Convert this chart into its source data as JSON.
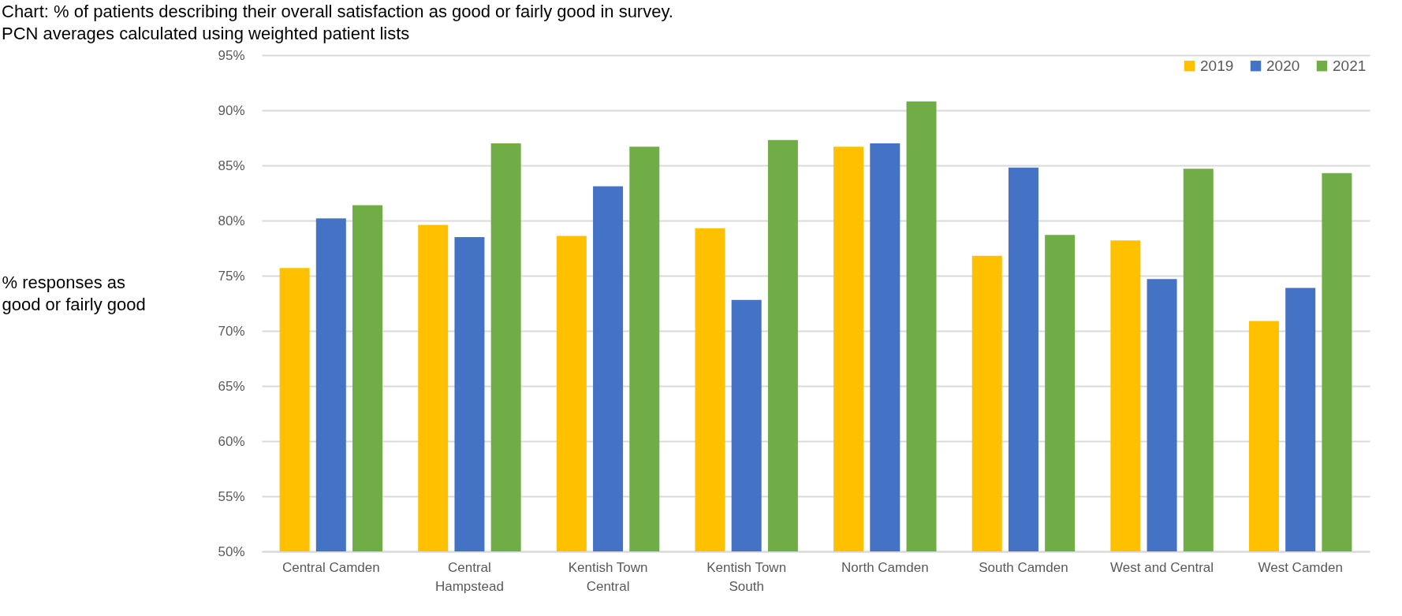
{
  "chart_data": {
    "type": "bar",
    "title": "Chart: % of patients describing their overall satisfaction as good or fairly good in survey. PCN averages calculated using weighted patient lists",
    "ylabel": "%  responses as\ngood or fairly good",
    "categories": [
      "Central Camden",
      "Central\nHampstead",
      "Kentish Town\nCentral",
      "Kentish Town\nSouth",
      "North Camden",
      "South Camden",
      "West and Central",
      "West Camden"
    ],
    "series": [
      {
        "name": "2019",
        "color": "#ffc000",
        "values": [
          75.7,
          79.6,
          78.6,
          79.3,
          86.7,
          76.8,
          78.2,
          70.9
        ]
      },
      {
        "name": "2020",
        "color": "#4472c4",
        "values": [
          80.2,
          78.5,
          83.1,
          72.8,
          87.0,
          84.8,
          74.7,
          73.9
        ]
      },
      {
        "name": "2021",
        "color": "#70ad47",
        "values": [
          81.4,
          87.0,
          86.7,
          87.3,
          90.8,
          78.7,
          84.7,
          84.3
        ]
      }
    ],
    "ylim": [
      50,
      95
    ],
    "yticks": [
      {
        "value": 50,
        "label": "50%"
      },
      {
        "value": 55,
        "label": "55%"
      },
      {
        "value": 60,
        "label": "60%"
      },
      {
        "value": 65,
        "label": "65%"
      },
      {
        "value": 70,
        "label": "70%"
      },
      {
        "value": 75,
        "label": "75%"
      },
      {
        "value": 80,
        "label": "80%"
      },
      {
        "value": 85,
        "label": "85%"
      },
      {
        "value": 90,
        "label": "90%"
      },
      {
        "value": 95,
        "label": "95%"
      }
    ],
    "grid": "y",
    "legend": "top right"
  }
}
